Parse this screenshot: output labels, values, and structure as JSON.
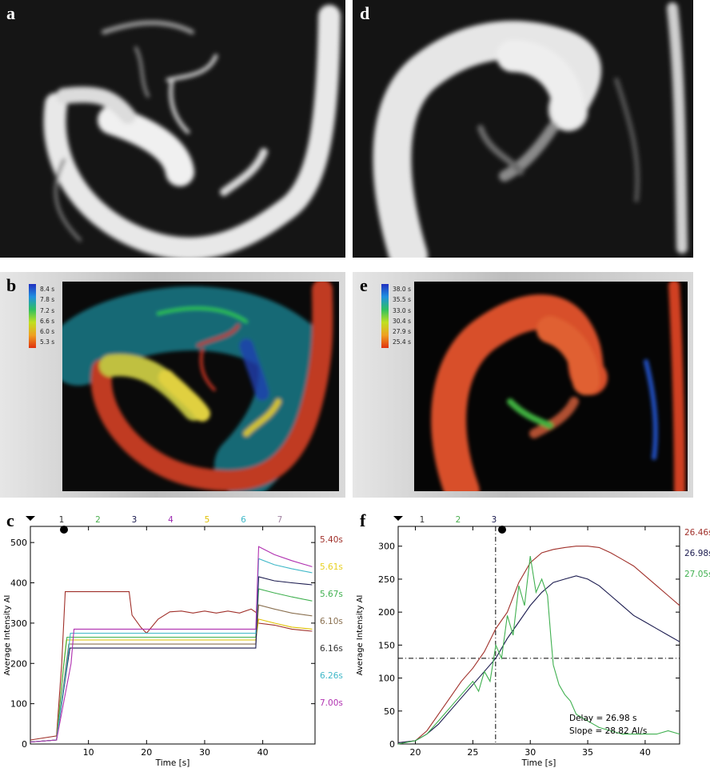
{
  "panels": {
    "a": {
      "label": "a",
      "image": "angiogram grayscale (lateral vessels)"
    },
    "d": {
      "label": "d",
      "image": "angiogram grayscale (aortic arch)"
    },
    "b": {
      "label": "b",
      "image": "parametric time-to-peak color map",
      "legend": [
        "8.4 s",
        "7.8 s",
        "7.2 s",
        "6.6 s",
        "6.0 s",
        "5.3 s"
      ]
    },
    "e": {
      "label": "e",
      "image": "parametric time-to-peak color map",
      "legend": [
        "38.0 s",
        "35.5 s",
        "33.0 s",
        "30.4 s",
        "27.9 s",
        "25.4 s"
      ]
    },
    "c": {
      "label": "c"
    },
    "f": {
      "label": "f"
    }
  },
  "chart_data": [
    {
      "panel": "c",
      "type": "line",
      "xlabel": "Time [s]",
      "ylabel": "Average Intensity AI",
      "xlim": [
        0,
        49
      ],
      "ylim": [
        0,
        540
      ],
      "xticks": [
        10,
        20,
        30,
        40
      ],
      "yticks": [
        0,
        100,
        200,
        300,
        400,
        500
      ],
      "top_markers": [
        "1",
        "2",
        "3",
        "4",
        "5",
        "6",
        "7"
      ],
      "marker_colors": [
        "#333333",
        "#4caf50",
        "#1a1a4e",
        "#9c27b0",
        "#e0c000",
        "#3fb8c8",
        "#a080a0"
      ],
      "right_labels": [
        {
          "text": "5.40s",
          "color": "#a0302a"
        },
        {
          "text": "5.61s",
          "color": "#e8d020"
        },
        {
          "text": "5.67s",
          "color": "#40b050"
        },
        {
          "text": "6.10s",
          "color": "#8a7050"
        },
        {
          "text": "6.16s",
          "color": "#333333"
        },
        {
          "text": "6.26s",
          "color": "#40b8c8"
        },
        {
          "text": "7.00s",
          "color": "#b030b0"
        }
      ],
      "series": [
        {
          "color": "#a0302a",
          "x": [
            0,
            4.5,
            5.4,
            6,
            17,
            17.5,
            19,
            20,
            22,
            24,
            26,
            28,
            30,
            32,
            34,
            36,
            38,
            39,
            39.2,
            42,
            45,
            48.5
          ],
          "y": [
            10,
            20,
            200,
            378,
            378,
            320,
            290,
            275,
            310,
            328,
            330,
            325,
            330,
            325,
            330,
            325,
            335,
            325,
            300,
            295,
            285,
            280
          ]
        },
        {
          "color": "#e0c000",
          "x": [
            0,
            4.5,
            5.6,
            6.2,
            38.8,
            39.3,
            42,
            45,
            48.5
          ],
          "y": [
            5,
            10,
            180,
            258,
            258,
            310,
            300,
            290,
            285
          ]
        },
        {
          "color": "#40b050",
          "x": [
            0,
            4.5,
            5.7,
            6.3,
            38.8,
            39.3,
            42,
            45,
            48.5
          ],
          "y": [
            5,
            10,
            190,
            265,
            265,
            385,
            375,
            365,
            355
          ]
        },
        {
          "color": "#8a7050",
          "x": [
            0,
            4.5,
            6.1,
            6.6,
            38.8,
            39.3,
            42,
            45,
            48.5
          ],
          "y": [
            5,
            10,
            190,
            248,
            248,
            345,
            335,
            325,
            318
          ]
        },
        {
          "color": "#1a1a4e",
          "x": [
            0,
            4.5,
            6.2,
            6.8,
            38.8,
            39.3,
            42,
            45,
            48.5
          ],
          "y": [
            5,
            10,
            180,
            238,
            238,
            415,
            405,
            400,
            395
          ]
        },
        {
          "color": "#40b8c8",
          "x": [
            0,
            4.5,
            6.3,
            6.9,
            38.8,
            39.3,
            42,
            45,
            48.5
          ],
          "y": [
            5,
            10,
            200,
            275,
            275,
            460,
            445,
            435,
            425
          ]
        },
        {
          "color": "#b030b0",
          "x": [
            0,
            4.5,
            7.0,
            7.5,
            38.8,
            39.3,
            42,
            45,
            48.5
          ],
          "y": [
            5,
            10,
            200,
            285,
            285,
            490,
            470,
            455,
            440
          ]
        }
      ]
    },
    {
      "panel": "f",
      "type": "line",
      "xlabel": "Time [s]",
      "ylabel": "Average Intensity AI",
      "xlim": [
        18.5,
        43
      ],
      "ylim": [
        0,
        330
      ],
      "xticks": [
        20,
        25,
        30,
        35,
        40
      ],
      "yticks": [
        0,
        50,
        100,
        150,
        200,
        250,
        300
      ],
      "top_markers": [
        "1",
        "2",
        "3"
      ],
      "marker_colors": [
        "#333333",
        "#4caf50",
        "#1a1a4e"
      ],
      "right_labels": [
        {
          "text": "26.46s",
          "color": "#a0302a"
        },
        {
          "text": "26.98s",
          "color": "#1a1a4e"
        },
        {
          "text": "27.05s",
          "color": "#40b050"
        }
      ],
      "annotations": [
        "Delay = 26.98 s",
        "Slope = 28.82 AI/s"
      ],
      "crosshair": {
        "x": 26.98,
        "y": 130
      },
      "series": [
        {
          "color": "#a0302a",
          "x": [
            18.5,
            20,
            21,
            22,
            23,
            24,
            25,
            26,
            27,
            28,
            29,
            30,
            31,
            32,
            33,
            34,
            35,
            36,
            37,
            38,
            39,
            40,
            41,
            42,
            43
          ],
          "y": [
            2,
            5,
            20,
            45,
            70,
            95,
            115,
            140,
            175,
            200,
            245,
            275,
            290,
            295,
            298,
            300,
            300,
            298,
            290,
            280,
            270,
            255,
            240,
            225,
            210
          ]
        },
        {
          "color": "#1a1a4e",
          "x": [
            18.5,
            20,
            21,
            22,
            23,
            24,
            25,
            26,
            27,
            28,
            29,
            30,
            31,
            32,
            33,
            34,
            35,
            36,
            37,
            38,
            39,
            40,
            41,
            42,
            43
          ],
          "y": [
            2,
            5,
            15,
            30,
            50,
            70,
            90,
            110,
            130,
            160,
            185,
            210,
            230,
            245,
            250,
            255,
            250,
            240,
            225,
            210,
            195,
            185,
            175,
            165,
            155
          ]
        },
        {
          "color": "#40b050",
          "x": [
            18.5,
            20,
            21,
            22,
            23,
            24,
            25,
            25.5,
            26,
            26.5,
            27,
            27.5,
            28,
            28.5,
            29,
            29.5,
            30,
            30.5,
            31,
            31.5,
            31.8,
            32,
            32.5,
            33,
            33.5,
            34,
            35,
            36,
            37,
            38,
            40,
            41,
            42,
            43
          ],
          "y": [
            0,
            5,
            15,
            35,
            55,
            75,
            95,
            80,
            110,
            95,
            150,
            130,
            195,
            165,
            240,
            210,
            285,
            230,
            250,
            225,
            160,
            120,
            90,
            75,
            65,
            45,
            35,
            25,
            20,
            15,
            15,
            15,
            20,
            15
          ]
        }
      ]
    }
  ]
}
